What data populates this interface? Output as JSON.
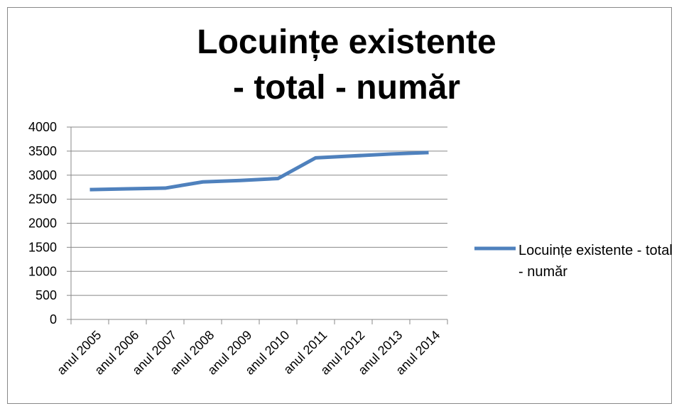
{
  "chart_data": {
    "type": "line",
    "title": "Locuințe existente - total - număr",
    "categories": [
      "anul 2005",
      "anul 2006",
      "anul 2007",
      "anul 2008",
      "anul 2009",
      "anul 2010",
      "anul 2011",
      "anul 2012",
      "anul 2013",
      "anul 2014"
    ],
    "series": [
      {
        "name": "Locuințe existente - total - număr",
        "color": "#4f81bd",
        "values": [
          2700,
          2715,
          2730,
          2860,
          2890,
          2930,
          3360,
          3400,
          3440,
          3470
        ]
      }
    ],
    "ylim": [
      0,
      4000
    ],
    "yticks": [
      0,
      500,
      1000,
      1500,
      2000,
      2500,
      3000,
      3500,
      4000
    ],
    "grid": true,
    "legend": "right"
  }
}
